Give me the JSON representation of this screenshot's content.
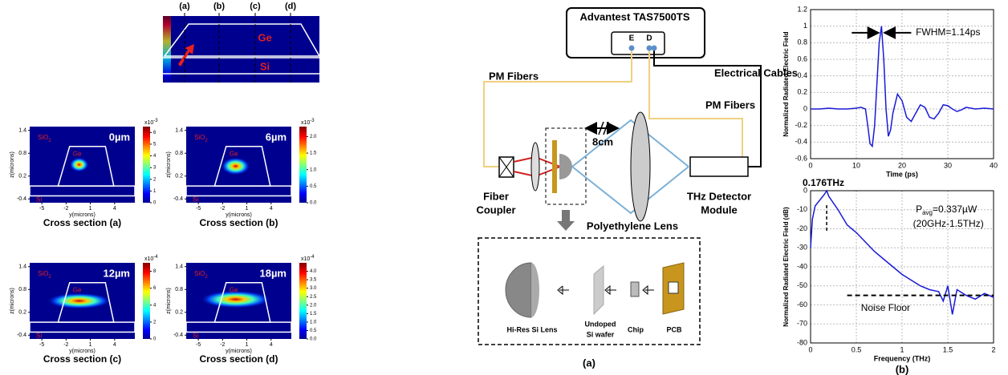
{
  "figure": {
    "mode_profile": {
      "section_labels": [
        "(a)",
        "(b)",
        "(c)",
        "(d)"
      ],
      "ge_label": "Ge",
      "si_label": "Si"
    },
    "cross_sections": {
      "z_axis_label": "z(microns)",
      "y_axis_label": "y(microns)",
      "xlim": [
        -6.5,
        6.5
      ],
      "xticks": [
        -5,
        -2,
        1,
        4
      ],
      "ylim": [
        -0.5,
        1.5
      ],
      "yticks": [
        -0.4,
        0.2,
        0.8,
        1.4
      ],
      "oxide_label": "SiO",
      "oxide_subscript": "2",
      "ge_label": "Ge",
      "si_label": "Si",
      "panels": [
        {
          "distance": "0µm",
          "caption": "Cross section (a)",
          "colorbar_multiplier": "x10",
          "colorbar_exponent": "-3",
          "colorbar_lim": [
            0,
            6.5
          ],
          "colorbar_ticks": [
            0,
            1,
            2,
            3,
            4,
            5,
            6
          ]
        },
        {
          "distance": "6µm",
          "caption": "Cross section (b)",
          "colorbar_multiplier": "x10",
          "colorbar_exponent": "-3",
          "colorbar_lim": [
            0,
            2.3
          ],
          "colorbar_ticks": [
            {
              "value": 0,
              "label": "0.0"
            },
            0.5,
            {
              "value": 1,
              "label": "1.0"
            },
            1.5,
            {
              "value": 2,
              "label": "2.0"
            }
          ]
        },
        {
          "distance": "12µm",
          "caption": "Cross section (c)",
          "colorbar_multiplier": "x10",
          "colorbar_exponent": "-4",
          "colorbar_lim": [
            0,
            9
          ],
          "colorbar_ticks": [
            0,
            2,
            4,
            6,
            8
          ]
        },
        {
          "distance": "18µm",
          "caption": "Cross section (d)",
          "colorbar_multiplier": "x10",
          "colorbar_exponent": "-4",
          "colorbar_lim": [
            0,
            4.5
          ],
          "colorbar_ticks": [
            {
              "value": 0,
              "label": "0.0"
            },
            0.5,
            {
              "value": 1,
              "label": "1.0"
            },
            1.5,
            {
              "value": 2,
              "label": "2.0"
            },
            2.5,
            {
              "value": 3,
              "label": "3.0"
            },
            3.5,
            {
              "value": 4,
              "label": "4.0"
            }
          ]
        }
      ]
    },
    "setup": {
      "instrument": "Advantest TAS7500TS",
      "port_e": "E",
      "port_d": "D",
      "electrical_cables": "Electrical Cables",
      "pm_fibers_left": "PM Fibers",
      "pm_fibers_right": "PM Fibers",
      "distance": "8cm",
      "coupler_line1": "Fiber",
      "coupler_line2": "Coupler",
      "detector_line1": "THz Detector",
      "detector_line2": "Module",
      "lens": "Polyethylene Lens",
      "inset_lens": "Hi-Res Si Lens",
      "inset_wafer_line1": "Undoped",
      "inset_wafer_line2": "Si wafer",
      "inset_chip": "Chip",
      "inset_pcb": "PCB",
      "panel_label": "(a)"
    }
  },
  "chart_data": [
    {
      "type": "line",
      "ylabel": "Normalized Radiated Electric Field",
      "xlabel": "Time (ps)",
      "color": "#1a1ad6",
      "grid": true,
      "xlim": [
        0,
        40
      ],
      "xticks": [
        0,
        10,
        20,
        30,
        40
      ],
      "ylim": [
        -0.6,
        1.2
      ],
      "yticks": [
        -0.6,
        -0.4,
        -0.2,
        0,
        0.2,
        0.4,
        0.6,
        0.8,
        1,
        1.2
      ],
      "x": [
        0,
        2,
        4,
        6,
        8,
        10,
        11,
        12,
        12.5,
        13,
        13.5,
        14,
        14.5,
        15,
        15.5,
        16,
        16.5,
        17,
        17.5,
        18,
        19,
        20,
        21,
        22,
        23,
        24,
        25,
        26,
        27,
        28,
        29,
        30,
        31,
        32,
        33,
        34,
        36,
        38,
        40
      ],
      "values": [
        0,
        0,
        0.01,
        0,
        0,
        0.01,
        0.02,
        0,
        -0.2,
        -0.42,
        -0.45,
        -0.2,
        0.3,
        0.8,
        1.0,
        0.6,
        0.0,
        -0.33,
        -0.25,
        -0.05,
        0.18,
        0.1,
        -0.1,
        -0.15,
        -0.05,
        0.05,
        0.02,
        -0.1,
        -0.12,
        -0.05,
        0.05,
        0.04,
        0.0,
        -0.03,
        -0.01,
        0.02,
        0.0,
        0.01,
        0
      ],
      "fwhm_label": "FWHM=1.14ps"
    },
    {
      "type": "line",
      "ylabel": "Normalized Radiated Electric Field (dB)",
      "xlabel": "Frequency (THz)",
      "color": "#1a1ad6",
      "grid": true,
      "xlim": [
        0,
        2
      ],
      "xticks": [
        0,
        0.5,
        1,
        1.5,
        2
      ],
      "ylim": [
        -80,
        0
      ],
      "yticks": [
        -80,
        -70,
        -60,
        -50,
        -40,
        -30,
        -20,
        -10,
        0
      ],
      "x": [
        0,
        0.02,
        0.05,
        0.1,
        0.15,
        0.176,
        0.2,
        0.3,
        0.4,
        0.5,
        0.6,
        0.7,
        0.8,
        0.9,
        1.0,
        1.1,
        1.2,
        1.3,
        1.4,
        1.45,
        1.5,
        1.55,
        1.6,
        1.7,
        1.8,
        1.9,
        2.0
      ],
      "values": [
        -30,
        -15,
        -8,
        -5,
        -2,
        0,
        -3,
        -10,
        -18,
        -22,
        -27,
        -32,
        -36,
        -40,
        -44,
        -47,
        -50,
        -52,
        -53,
        -58,
        -50,
        -65,
        -52,
        -55,
        -57,
        -54,
        -56
      ],
      "peak_label": "0.176THz",
      "peak_frequency": 0.176,
      "power_symbol": "P",
      "power_subscript": "avg",
      "power_value": "=0.337µW",
      "bandwidth": "(20GHz-1.5THz)",
      "noise_floor_label": "Noise Floor",
      "noise_floor": -55,
      "panel_label": "(b)"
    }
  ]
}
